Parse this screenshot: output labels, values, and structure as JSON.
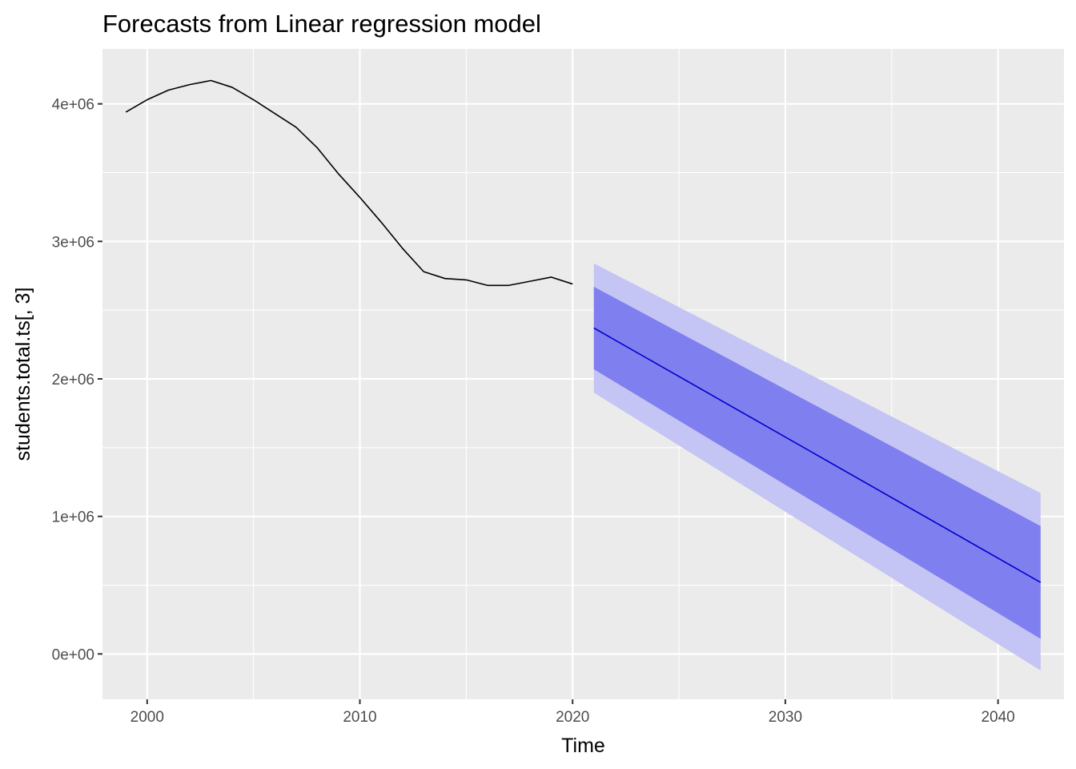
{
  "chart_data": {
    "type": "line",
    "title": "Forecasts from Linear regression model",
    "xlabel": "Time",
    "ylabel": "students.total.ts[, 3]",
    "xlim": [
      1997.9,
      2043.1
    ],
    "ylim": [
      -330000,
      4400000
    ],
    "x_ticks": [
      2000,
      2010,
      2020,
      2030,
      2040
    ],
    "x_tick_labels": [
      "2000",
      "2010",
      "2020",
      "2030",
      "2040"
    ],
    "y_ticks": [
      0,
      1000000,
      2000000,
      3000000,
      4000000
    ],
    "y_tick_labels": [
      "0e+00",
      "1e+06",
      "2e+06",
      "3e+06",
      "4e+06"
    ],
    "grid": true,
    "background": "#ebebeb",
    "series": [
      {
        "kind": "observed",
        "color": "#000000",
        "x": [
          1999,
          2000,
          2001,
          2002,
          2003,
          2004,
          2005,
          2006,
          2007,
          2008,
          2009,
          2010,
          2011,
          2012,
          2013,
          2014,
          2015,
          2016,
          2017,
          2018,
          2019,
          2020
        ],
        "y": [
          3940000,
          4030000,
          4100000,
          4140000,
          4170000,
          4120000,
          4030000,
          3930000,
          3830000,
          3680000,
          3490000,
          3320000,
          3140000,
          2950000,
          2780000,
          2730000,
          2720000,
          2680000,
          2680000,
          2710000,
          2740000,
          2690000
        ]
      },
      {
        "kind": "forecast",
        "color": "#0000cc",
        "x": [
          2021,
          2042
        ],
        "y": [
          2370000,
          520000
        ]
      }
    ],
    "intervals": [
      {
        "level": 95,
        "color": "#c4c4f5",
        "x": [
          2021,
          2042
        ],
        "lower": [
          1900000,
          -120000
        ],
        "upper": [
          2840000,
          1170000
        ]
      },
      {
        "level": 80,
        "color": "#7f7fef",
        "x": [
          2021,
          2042
        ],
        "lower": [
          2070000,
          110000
        ],
        "upper": [
          2670000,
          930000
        ]
      }
    ]
  }
}
